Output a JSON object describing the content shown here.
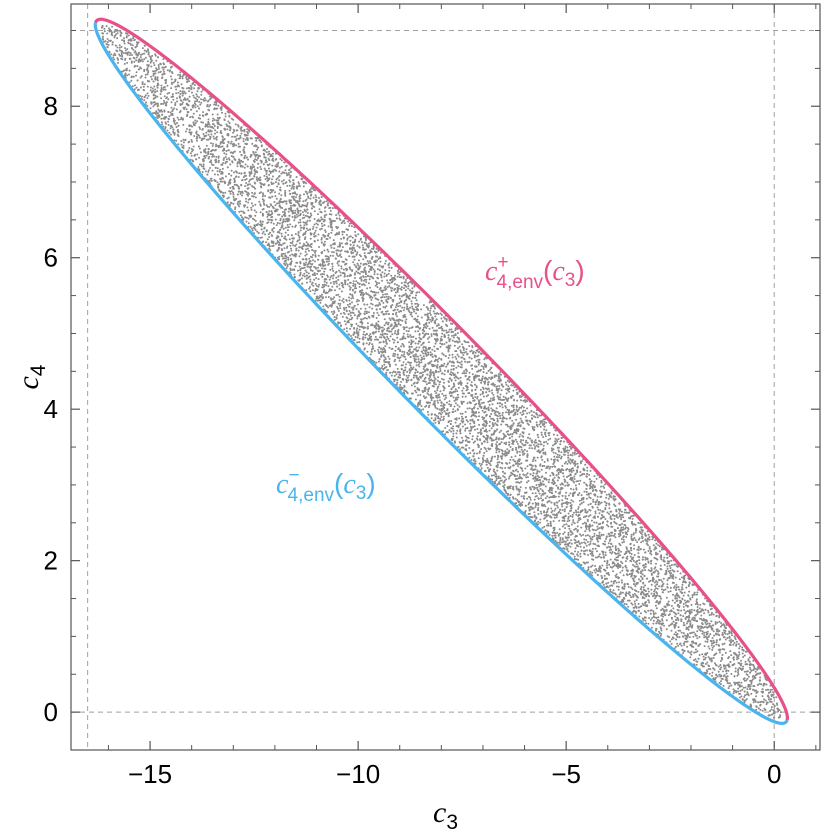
{
  "chart_data": {
    "type": "scatter",
    "title": "",
    "xlabel": {
      "base": "c",
      "sub": "3"
    },
    "ylabel": {
      "base": "c",
      "sub": "4"
    },
    "xlim": [
      -16.9,
      1.1
    ],
    "ylim": [
      -0.5,
      9.35
    ],
    "xticks": [
      -15,
      -10,
      -5,
      0
    ],
    "xtick_labels": [
      "−15",
      "−10",
      "−5",
      "0"
    ],
    "yticks": [
      0,
      2,
      4,
      6,
      8
    ],
    "ytick_labels": [
      "0",
      "2",
      "4",
      "6",
      "8"
    ],
    "reference_lines": {
      "x": [
        -16.5,
        0
      ],
      "y": [
        0,
        9
      ]
    },
    "grid": false,
    "ellipse": {
      "center": [
        -8,
        4.5
      ],
      "semi_major": 9.5,
      "semi_minor": 0.72,
      "angle_deg": -29
    },
    "series": [
      {
        "name": "upper",
        "kind": "line",
        "color": "#e8508a",
        "label": {
          "base": "c",
          "sub": "4,env",
          "sup": "+",
          "arg": "c",
          "arg_sub": "3"
        }
      },
      {
        "name": "lower",
        "kind": "line",
        "color": "#4ab4ee",
        "label": {
          "base": "c",
          "sub": "4,env",
          "sup": "−",
          "arg": "c",
          "arg_sub": "3"
        }
      },
      {
        "name": "samples",
        "kind": "scatter",
        "color": "#8a8a8a",
        "count": 9000
      }
    ]
  }
}
